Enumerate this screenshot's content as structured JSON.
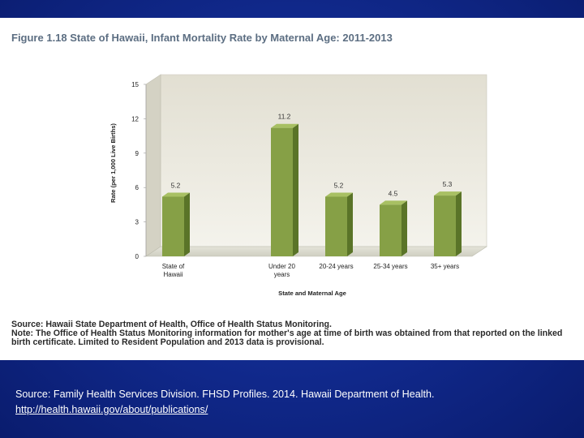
{
  "chart_data": {
    "type": "bar",
    "title": "Figure 1.18 State of Hawaii, Infant Mortality Rate by Maternal Age: 2011-2013",
    "categories": [
      [
        "State of",
        "Hawaii"
      ],
      [
        "Under 20",
        "years"
      ],
      [
        "20-24 years"
      ],
      [
        "25-34 years"
      ],
      [
        "35+ years"
      ]
    ],
    "values": [
      5.2,
      11.2,
      5.2,
      4.5,
      5.3
    ],
    "value_labels": [
      "5.2",
      "11.2",
      "5.2",
      "4.5",
      "5.3"
    ],
    "slots": [
      0,
      2,
      3,
      4,
      5
    ],
    "xlabel": "State and Maternal Age",
    "ylabel": "Rate (per 1,000 Live Births)",
    "ylim": [
      0,
      15
    ],
    "yticks": [
      0,
      3,
      6,
      9,
      12,
      15
    ],
    "grid": false,
    "colors": {
      "bar_front": "#86a046",
      "bar_side": "#5a7428",
      "bar_top": "#a8c063",
      "wall": "#eceae0",
      "floor": "#d8d8cc"
    }
  },
  "notes": {
    "source": "Source: Hawaii State Department of Health, Office of Health Status Monitoring.",
    "note": "Note: The Office of Health Status Monitoring information for mother's age at time of birth was obtained from that reported on the linked birth certificate. Limited to Resident Population and 2013 data is provisional."
  },
  "footer": {
    "citation": "Source: Family Health Services Division. FHSD Profiles. 2014. Hawaii Department of Health.",
    "url": "http://health.hawaii.gov/about/publications/"
  }
}
